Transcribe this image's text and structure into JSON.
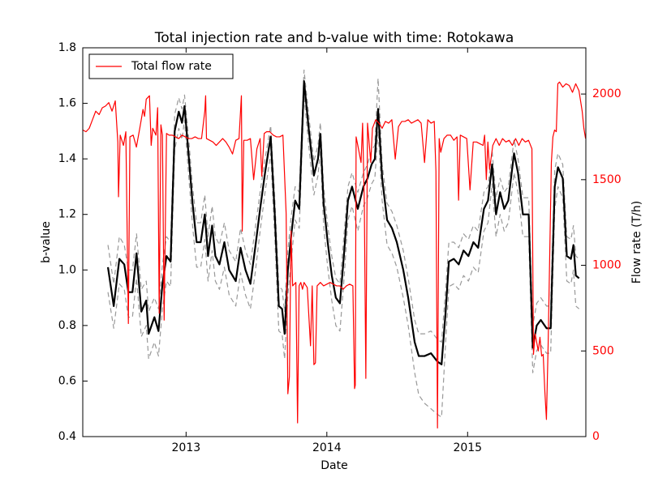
{
  "chart_data": {
    "type": "line",
    "title": "Total injection rate and b-value with time: Rotokawa",
    "x_label": "Date",
    "y_label": "b-value",
    "y2_label": "Flow rate (T/h)",
    "y2_color": "#ff0000",
    "xlim": [
      2012.266,
      2015.84
    ],
    "xticks": [
      2013,
      2014,
      2015
    ],
    "ylim": [
      0.4,
      1.8
    ],
    "yticks": [
      0.4,
      0.6,
      0.8,
      {
        "value": 1,
        "label": "1.0"
      },
      1.2,
      1.4,
      1.6,
      1.8
    ],
    "y2lim": [
      0,
      2270
    ],
    "y2ticks": [
      0,
      500,
      1000,
      1500,
      2000
    ],
    "legend": "upper left",
    "x": [
      2012.445,
      2012.486,
      2012.526,
      2012.561,
      2012.59,
      2012.619,
      2012.648,
      2012.682,
      2012.717,
      2012.734,
      2012.775,
      2012.804,
      2012.832,
      2012.861,
      2012.89,
      2012.919,
      2012.948,
      2012.971,
      2012.989,
      2013.017,
      2013.046,
      2013.075,
      2013.104,
      2013.133,
      2013.156,
      2013.185,
      2013.208,
      2013.237,
      2013.272,
      2013.306,
      2013.353,
      2013.387,
      2013.422,
      2013.457,
      2013.491,
      2013.526,
      2013.561,
      2013.601,
      2013.63,
      2013.659,
      2013.682,
      2013.7,
      2013.723,
      2013.746,
      2013.775,
      2013.804,
      2013.838,
      2013.873,
      2013.908,
      2013.937,
      2013.954,
      2013.977,
      2014.006,
      2014.035,
      2014.064,
      2014.093,
      2014.121,
      2014.15,
      2014.179,
      2014.22,
      2014.26,
      2014.289,
      2014.318,
      2014.341,
      2014.364,
      2014.393,
      2014.428,
      2014.463,
      2014.497,
      2014.543,
      2014.578,
      2014.624,
      2014.653,
      2014.694,
      2014.74,
      2014.786,
      2014.815,
      2014.844,
      2014.867,
      2014.902,
      2014.937,
      2014.971,
      2015.006,
      2015.041,
      2015.075,
      2015.116,
      2015.145,
      2015.174,
      2015.202,
      2015.231,
      2015.26,
      2015.289,
      2015.33,
      2015.358,
      2015.393,
      2015.434,
      2015.463,
      2015.491,
      2015.52,
      2015.561,
      2015.59,
      2015.619,
      2015.642,
      2015.676,
      2015.705,
      2015.734,
      2015.752,
      2015.769,
      2015.792
    ],
    "series": [
      {
        "color": "#999999",
        "dashed": true,
        "values": [
          1.09,
          0.95,
          1.12,
          1.09,
          1.0,
          1.0,
          1.13,
          0.93,
          0.96,
          0.85,
          0.9,
          0.86,
          1.02,
          1.12,
          1.1,
          1.56,
          1.62,
          1.58,
          1.63,
          1.48,
          1.3,
          1.17,
          1.17,
          1.27,
          1.12,
          1.23,
          1.12,
          1.09,
          1.17,
          1.07,
          1.03,
          1.15,
          1.07,
          1.02,
          1.15,
          1.28,
          1.4,
          1.52,
          1.26,
          0.94,
          0.93,
          0.85,
          1.07,
          1.19,
          1.3,
          1.28,
          1.72,
          1.55,
          1.39,
          1.45,
          1.53,
          1.3,
          1.16,
          1.05,
          0.97,
          0.95,
          1.12,
          1.3,
          1.35,
          1.28,
          1.35,
          1.38,
          1.43,
          1.45,
          1.69,
          1.38,
          1.24,
          1.21,
          1.16,
          1.07,
          0.97,
          0.82,
          0.77,
          0.77,
          0.78,
          0.75,
          0.74,
          0.93,
          1.1,
          1.1,
          1.08,
          1.13,
          1.11,
          1.16,
          1.14,
          1.28,
          1.3,
          1.43,
          1.26,
          1.33,
          1.28,
          1.3,
          1.47,
          1.4,
          1.26,
          1.26,
          0.8,
          0.88,
          0.9,
          0.87,
          0.87,
          1.36,
          1.42,
          1.38,
          1.12,
          1.11,
          1.16,
          1.05,
          1.04
        ]
      },
      {
        "color": "#999999",
        "dashed": true,
        "values": [
          0.92,
          0.79,
          0.95,
          0.93,
          0.83,
          0.83,
          0.97,
          0.76,
          0.8,
          0.68,
          0.74,
          0.69,
          0.86,
          0.96,
          0.94,
          1.43,
          1.51,
          1.47,
          1.54,
          1.35,
          1.16,
          1.01,
          1.01,
          1.11,
          0.96,
          1.07,
          0.96,
          0.93,
          1.01,
          0.91,
          0.87,
          0.99,
          0.91,
          0.86,
          0.99,
          1.14,
          1.28,
          1.42,
          1.12,
          0.78,
          0.77,
          0.68,
          0.91,
          1.03,
          1.18,
          1.15,
          1.63,
          1.44,
          1.27,
          1.34,
          1.43,
          1.16,
          1.01,
          0.89,
          0.8,
          0.78,
          0.96,
          1.18,
          1.23,
          1.14,
          1.23,
          1.26,
          1.31,
          1.33,
          1.5,
          1.25,
          1.09,
          1.06,
          1.01,
          0.9,
          0.8,
          0.63,
          0.55,
          0.52,
          0.5,
          0.48,
          0.47,
          0.74,
          0.94,
          0.95,
          0.93,
          0.98,
          0.96,
          1.01,
          0.99,
          1.14,
          1.17,
          1.31,
          1.12,
          1.2,
          1.14,
          1.17,
          1.35,
          1.28,
          1.12,
          1.12,
          0.63,
          0.71,
          0.73,
          0.7,
          0.7,
          1.22,
          1.3,
          1.26,
          0.96,
          0.95,
          1.0,
          0.87,
          0.86
        ]
      },
      {
        "color": "#000000",
        "values": [
          1.01,
          0.87,
          1.04,
          1.02,
          0.92,
          0.92,
          1.06,
          0.85,
          0.89,
          0.77,
          0.83,
          0.78,
          0.95,
          1.05,
          1.03,
          1.5,
          1.57,
          1.53,
          1.59,
          1.42,
          1.24,
          1.1,
          1.1,
          1.2,
          1.05,
          1.16,
          1.05,
          1.02,
          1.1,
          1.0,
          0.96,
          1.08,
          1.0,
          0.95,
          1.08,
          1.22,
          1.35,
          1.48,
          1.2,
          0.87,
          0.86,
          0.77,
          1.0,
          1.12,
          1.25,
          1.22,
          1.68,
          1.5,
          1.34,
          1.4,
          1.49,
          1.24,
          1.1,
          0.98,
          0.9,
          0.88,
          1.05,
          1.25,
          1.3,
          1.22,
          1.3,
          1.33,
          1.38,
          1.4,
          1.58,
          1.33,
          1.18,
          1.15,
          1.1,
          1.0,
          0.9,
          0.74,
          0.69,
          0.69,
          0.7,
          0.67,
          0.66,
          0.85,
          1.03,
          1.04,
          1.02,
          1.07,
          1.05,
          1.1,
          1.08,
          1.22,
          1.25,
          1.38,
          1.2,
          1.28,
          1.22,
          1.25,
          1.42,
          1.35,
          1.2,
          1.2,
          0.72,
          0.8,
          0.82,
          0.79,
          0.79,
          1.3,
          1.37,
          1.33,
          1.05,
          1.04,
          1.09,
          0.98,
          0.97
        ]
      },
      {
        "name": "Total flow rate",
        "color": "#ff0000",
        "axis": "y2",
        "x": [
          2012.266,
          2012.289,
          2012.312,
          2012.335,
          2012.358,
          2012.382,
          2012.405,
          2012.428,
          2012.451,
          2012.474,
          2012.497,
          2012.515,
          2012.52,
          2012.532,
          2012.555,
          2012.572,
          2012.59,
          2012.601,
          2012.624,
          2012.647,
          2012.671,
          2012.694,
          2012.705,
          2012.717,
          2012.74,
          2012.752,
          2012.763,
          2012.786,
          2012.798,
          2012.809,
          2012.821,
          2012.832,
          2012.844,
          2012.861,
          2012.879,
          2012.902,
          2012.925,
          2012.948,
          2012.971,
          2012.994,
          2013.017,
          2013.041,
          2013.064,
          2013.087,
          2013.11,
          2013.133,
          2013.139,
          2013.145,
          2013.168,
          2013.191,
          2013.214,
          2013.237,
          2013.26,
          2013.283,
          2013.306,
          2013.33,
          2013.353,
          2013.376,
          2013.393,
          2013.399,
          2013.41,
          2013.434,
          2013.457,
          2013.48,
          2013.503,
          2013.526,
          2013.538,
          2013.555,
          2013.572,
          2013.595,
          2013.619,
          2013.642,
          2013.665,
          2013.688,
          2013.711,
          2013.723,
          2013.734,
          2013.746,
          2013.757,
          2013.78,
          2013.792,
          2013.803,
          2013.815,
          2013.827,
          2013.838,
          2013.861,
          2013.884,
          2013.896,
          2013.908,
          2013.919,
          2013.931,
          2013.954,
          2013.977,
          2014.0,
          2014.023,
          2014.046,
          2014.069,
          2014.092,
          2014.116,
          2014.139,
          2014.162,
          2014.185,
          2014.197,
          2014.202,
          2014.208,
          2014.22,
          2014.243,
          2014.254,
          2014.266,
          2014.277,
          2014.289,
          2014.312,
          2014.324,
          2014.347,
          2014.37,
          2014.393,
          2014.416,
          2014.439,
          2014.462,
          2014.486,
          2014.509,
          2014.532,
          2014.555,
          2014.578,
          2014.601,
          2014.624,
          2014.647,
          2014.67,
          2014.694,
          2014.717,
          2014.74,
          2014.763,
          2014.775,
          2014.786,
          2014.798,
          2014.809,
          2014.832,
          2014.855,
          2014.879,
          2014.902,
          2014.925,
          2014.936,
          2014.948,
          2014.971,
          2014.994,
          2015.017,
          2015.04,
          2015.064,
          2015.087,
          2015.11,
          2015.121,
          2015.133,
          2015.144,
          2015.156,
          2015.179,
          2015.202,
          2015.225,
          2015.248,
          2015.272,
          2015.295,
          2015.318,
          2015.341,
          2015.364,
          2015.387,
          2015.41,
          2015.433,
          2015.457,
          2015.468,
          2015.48,
          2015.502,
          2015.514,
          2015.526,
          2015.537,
          2015.549,
          2015.56,
          2015.572,
          2015.595,
          2015.606,
          2015.618,
          2015.63,
          2015.641,
          2015.653,
          2015.676,
          2015.699,
          2015.722,
          2015.745,
          2015.768,
          2015.791,
          2015.814,
          2015.826,
          2015.838
        ],
        "values": [
          1790,
          1780,
          1800,
          1850,
          1900,
          1880,
          1920,
          1930,
          1950,
          1900,
          1960,
          1720,
          1400,
          1760,
          1700,
          1780,
          660,
          1750,
          1760,
          1690,
          1800,
          1910,
          1870,
          1970,
          1990,
          1700,
          1800,
          1760,
          1920,
          720,
          1820,
          1760,
          680,
          1770,
          1760,
          1760,
          1750,
          1740,
          1760,
          1750,
          1740,
          1740,
          1750,
          1740,
          1740,
          1900,
          1990,
          1740,
          1730,
          1720,
          1700,
          1720,
          1740,
          1720,
          1690,
          1650,
          1730,
          1740,
          1990,
          1200,
          1730,
          1730,
          1740,
          1500,
          1680,
          1740,
          1520,
          1770,
          1780,
          1780,
          1760,
          1750,
          1750,
          1760,
          1300,
          250,
          350,
          1200,
          880,
          900,
          80,
          880,
          900,
          860,
          900,
          870,
          530,
          880,
          420,
          430,
          880,
          900,
          880,
          890,
          900,
          890,
          880,
          880,
          860,
          880,
          890,
          880,
          280,
          300,
          1750,
          1700,
          1600,
          1830,
          1380,
          340,
          1830,
          1600,
          1800,
          1850,
          1830,
          1800,
          1840,
          1830,
          1850,
          1620,
          1810,
          1840,
          1840,
          1850,
          1830,
          1840,
          1850,
          1830,
          1600,
          1850,
          1830,
          1840,
          1550,
          50,
          1740,
          1660,
          1740,
          1760,
          1760,
          1730,
          1750,
          1380,
          1760,
          1750,
          1740,
          1440,
          1720,
          1720,
          1710,
          1700,
          1760,
          1500,
          1720,
          1560,
          1700,
          1740,
          1700,
          1740,
          1720,
          1730,
          1700,
          1740,
          1700,
          1740,
          1720,
          1730,
          1680,
          480,
          600,
          500,
          580,
          470,
          480,
          260,
          100,
          530,
          1600,
          1750,
          1790,
          1780,
          2060,
          2070,
          2040,
          2060,
          2050,
          2010,
          2060,
          2020,
          1900,
          1800,
          1740
        ]
      }
    ]
  }
}
